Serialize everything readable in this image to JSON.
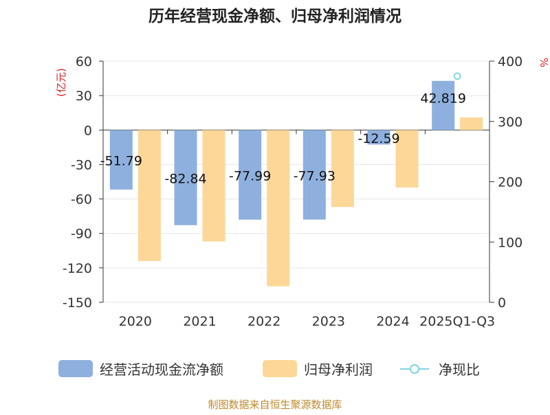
{
  "chart_data": {
    "type": "bar",
    "title": "历年经营现金净额、归母净利润情况",
    "left_axis_label": "(亿元)",
    "right_axis_label": "%",
    "categories": [
      "2020",
      "2021",
      "2022",
      "2023",
      "2024",
      "2025Q1-Q3"
    ],
    "left_ylim": [
      -150,
      60
    ],
    "left_ticks": [
      60,
      30,
      0,
      -30,
      -60,
      -90,
      -120,
      -150
    ],
    "right_ylim": [
      0,
      400
    ],
    "right_ticks": [
      400,
      300,
      200,
      100,
      0
    ],
    "series": [
      {
        "name": "经营活动现金流净额",
        "color": "#8eb0de",
        "axis": "left",
        "values": [
          -51.79,
          -82.84,
          -77.99,
          -77.93,
          -12.59,
          42.819
        ],
        "labels": [
          "-51.79",
          "-82.84",
          "-77.99",
          "-77.93",
          "-12.59",
          "42.819"
        ]
      },
      {
        "name": "归母净利润",
        "color": "#fcd797",
        "axis": "left",
        "values": [
          -114,
          -97,
          -136,
          -67,
          -50,
          11
        ]
      },
      {
        "name": "净现比",
        "color": "#7fd4e0",
        "axis": "right",
        "type": "line",
        "values": [
          null,
          null,
          null,
          null,
          null,
          375
        ]
      }
    ],
    "source": "制图数据来自恒生聚源数据库"
  }
}
